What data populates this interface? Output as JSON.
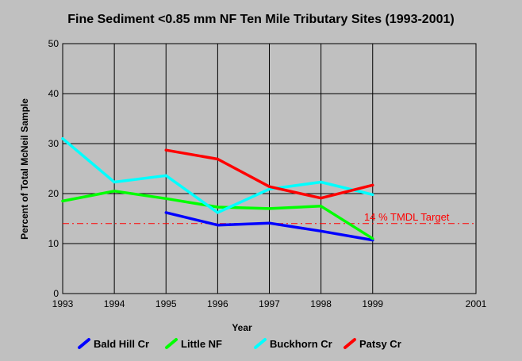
{
  "chart_data": {
    "type": "line",
    "title": "Fine Sediment <0.85 mm NF Ten Mile Tributary Sites (1993-2001)",
    "xlabel": "Year",
    "ylabel": "Percent of Total McNeil Sample",
    "xlim": [
      1993,
      2001
    ],
    "ylim": [
      0,
      50
    ],
    "xticks": [
      "1993",
      "1994",
      "1995",
      "1996",
      "1997",
      "1998",
      "1999",
      "2001"
    ],
    "yticks": [
      "0",
      "10",
      "20",
      "30",
      "40",
      "50"
    ],
    "grid": true,
    "legend_position": "bottom",
    "series": [
      {
        "name": "Bald Hill Cr",
        "color": "#0000ff",
        "x": [
          1995,
          1996,
          1997,
          1998,
          1999
        ],
        "y": [
          16.2,
          13.7,
          14.1,
          12.5,
          10.7
        ]
      },
      {
        "name": "Little NF",
        "color": "#00ff00",
        "x": [
          1993,
          1994,
          1995,
          1996,
          1997,
          1998,
          1999
        ],
        "y": [
          18.5,
          20.5,
          19.0,
          17.3,
          17.0,
          17.5,
          11.0
        ]
      },
      {
        "name": "Buckhorn Cr",
        "color": "#00ffff",
        "x": [
          1993,
          1994,
          1995,
          1996,
          1997,
          1998,
          1999
        ],
        "y": [
          31.0,
          22.3,
          23.6,
          16.2,
          20.9,
          22.3,
          19.8
        ]
      },
      {
        "name": "Patsy Cr",
        "color": "#ff0000",
        "x": [
          1995,
          1996,
          1997,
          1998,
          1999
        ],
        "y": [
          28.7,
          26.9,
          21.4,
          19.1,
          21.7
        ]
      }
    ],
    "reference_line": {
      "label": "14 % TMDL Target",
      "y": 14,
      "color": "#ff0000"
    }
  }
}
